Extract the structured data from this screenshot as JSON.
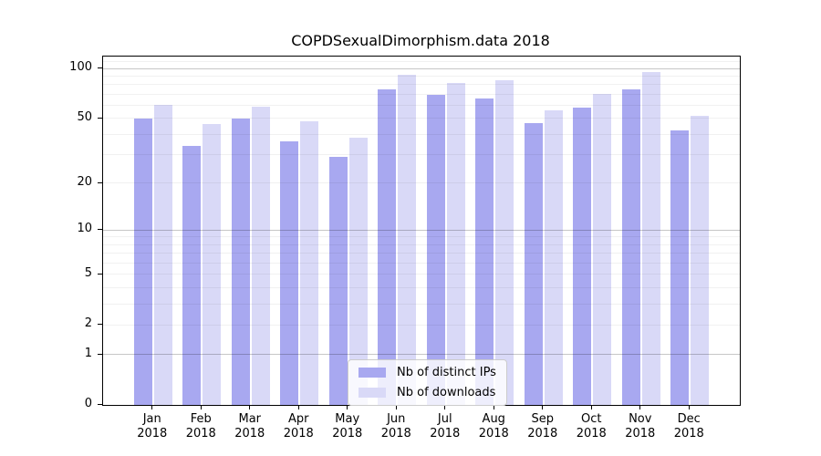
{
  "chart_data": {
    "type": "bar",
    "title": "COPDSexualDimorphism.data 2018",
    "yscale": "log1p",
    "xlabel": "",
    "ylabel": "",
    "categories": [
      "Jan 2018",
      "Feb 2018",
      "Mar 2018",
      "Apr 2018",
      "May 2018",
      "Jun 2018",
      "Jul 2018",
      "Aug 2018",
      "Sep 2018",
      "Oct 2018",
      "Nov 2018",
      "Dec 2018"
    ],
    "series": [
      {
        "name": "Nb of distinct IPs",
        "color": "#a8a8f0",
        "values": [
          50,
          34,
          50,
          36,
          29,
          75,
          69,
          66,
          47,
          58,
          75,
          42
        ]
      },
      {
        "name": "Nb of downloads",
        "color": "#d9d9f7",
        "values": [
          60,
          46,
          59,
          48,
          38,
          92,
          82,
          85,
          56,
          70,
          95,
          52
        ]
      }
    ],
    "yticks": [
      0,
      1,
      2,
      5,
      10,
      20,
      50,
      100
    ],
    "ylim": [
      0,
      118
    ],
    "gridlines": {
      "major": [
        1,
        10,
        100
      ],
      "minor": [
        2,
        3,
        4,
        5,
        6,
        7,
        8,
        9,
        20,
        30,
        40,
        50,
        60,
        70,
        80,
        90,
        110
      ]
    },
    "legend": {
      "position": "lower-center"
    }
  },
  "colors": {
    "bar_distinct_ips": "#a8a8f0",
    "bar_downloads": "#d9d9f7",
    "spine": "#000000",
    "background": "#ffffff"
  }
}
